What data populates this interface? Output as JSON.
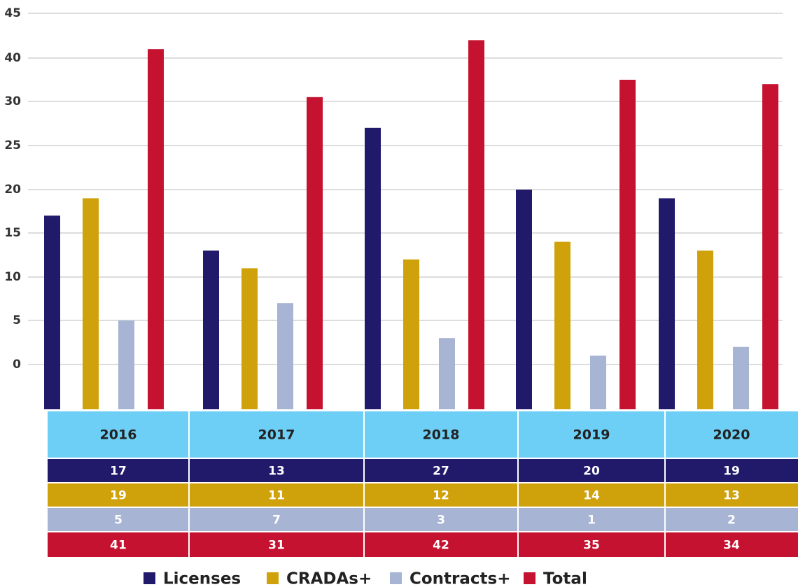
{
  "chart_data": {
    "type": "bar",
    "categories": [
      "2016",
      "2017",
      "2018",
      "2019",
      "2020"
    ],
    "series": [
      {
        "name": "Licenses",
        "color": "#211a6b",
        "values": [
          17,
          13,
          27,
          20,
          19
        ]
      },
      {
        "name": "CRADAs+",
        "color": "#cfa10a",
        "values": [
          19,
          11,
          12,
          14,
          13
        ]
      },
      {
        "name": "Contracts+",
        "color": "#a8b4d4",
        "values": [
          5,
          7,
          3,
          1,
          2
        ]
      },
      {
        "name": "Total",
        "color": "#c41230",
        "values": [
          41,
          31,
          42,
          35,
          34
        ]
      }
    ],
    "ylim": [
      0,
      45
    ],
    "yticks": [
      0,
      5,
      10,
      15,
      20,
      25,
      30,
      40,
      45
    ],
    "grid": true,
    "table_header_color": "#6dcff6",
    "legend": "bottom"
  }
}
